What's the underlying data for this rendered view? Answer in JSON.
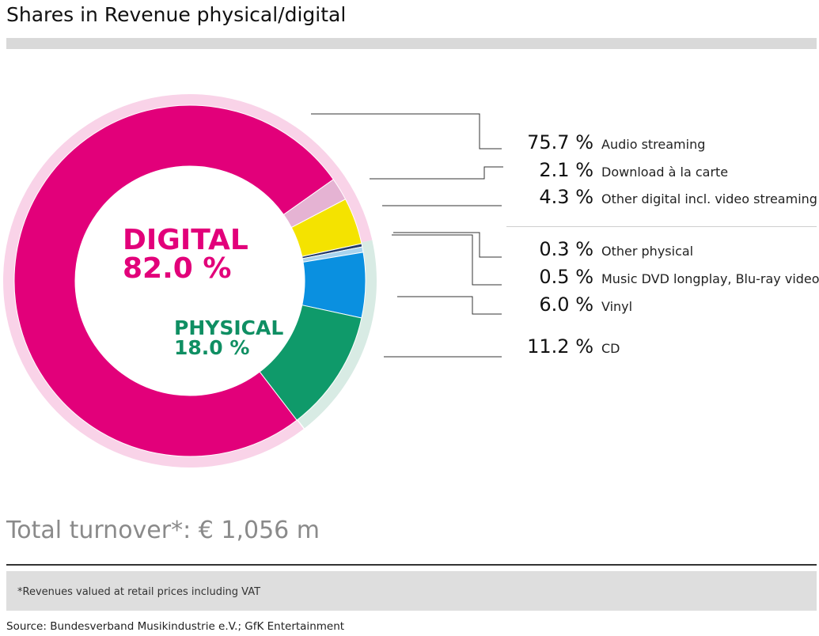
{
  "title": "Shares in Revenue physical/digital",
  "center_labels": {
    "digital_name": "DIGITAL",
    "digital_pct": "82.0 %",
    "physical_name": "PHYSICAL",
    "physical_pct": "18.0 %"
  },
  "chart_data": {
    "type": "pie",
    "title": "Shares in Revenue physical/digital",
    "groups": [
      {
        "name": "DIGITAL",
        "total": 82.0,
        "ring_color": "#f9d3e8"
      },
      {
        "name": "PHYSICAL",
        "total": 18.0,
        "ring_color": "#d8ebe4"
      }
    ],
    "series": [
      {
        "name": "Audio streaming",
        "value": 75.7,
        "label": "75.7 %",
        "group": "DIGITAL",
        "color": "#e2007a"
      },
      {
        "name": "Download à la carte",
        "value": 2.1,
        "label": "2.1 %",
        "group": "DIGITAL",
        "color": "#e5b3d3"
      },
      {
        "name": "Other digital incl. video streaming",
        "value": 4.3,
        "label": "4.3 %",
        "group": "DIGITAL",
        "color": "#f4e300"
      },
      {
        "name": "Other physical",
        "value": 0.3,
        "label": "0.3 %",
        "group": "PHYSICAL",
        "color": "#223a6b"
      },
      {
        "name": "Music DVD longplay, Blu-ray video",
        "value": 0.5,
        "label": "0.5 %",
        "group": "PHYSICAL",
        "color": "#a9d3ee"
      },
      {
        "name": "Vinyl",
        "value": 6.0,
        "label": "6.0 %",
        "group": "PHYSICAL",
        "color": "#0a90e0"
      },
      {
        "name": "CD",
        "value": 11.2,
        "label": "11.2 %",
        "group": "PHYSICAL",
        "color": "#0f9a6a"
      }
    ]
  },
  "total_turnover": "Total turnover*: € 1,056 m",
  "footnote": "*Revenues valued at retail prices including VAT",
  "source": "Source: Bundesverband Musikindustrie e.V.; GfK Entertainment"
}
